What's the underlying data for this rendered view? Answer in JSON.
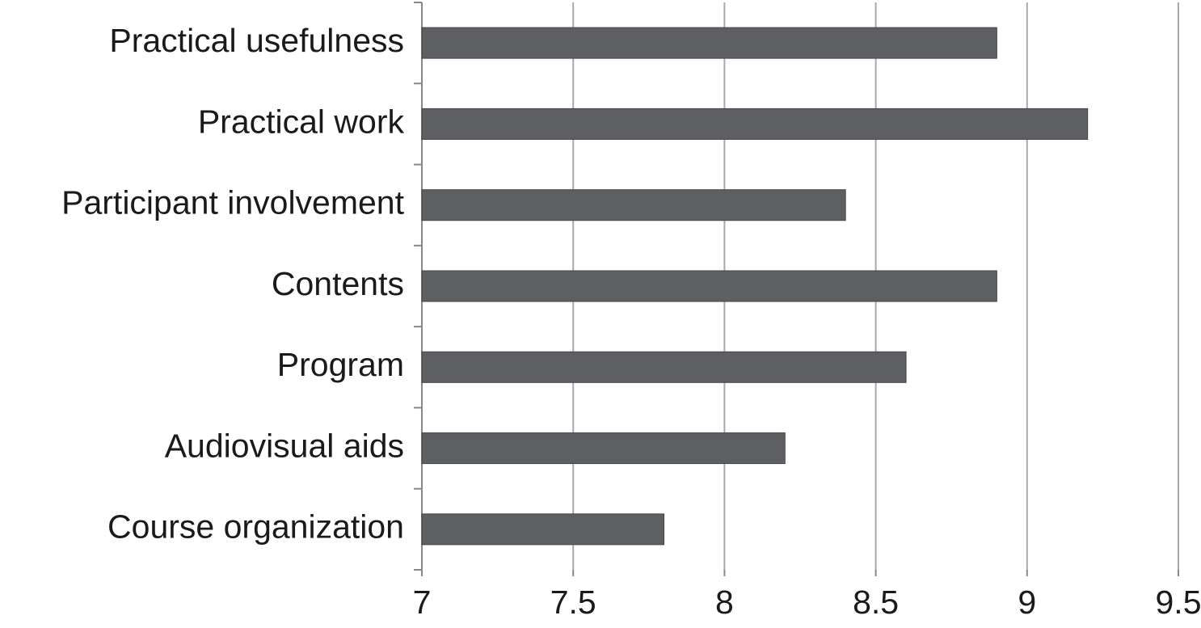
{
  "chart_data": {
    "type": "hbar",
    "categories": [
      "Practical usefulness",
      "Practical work",
      "Participant involvement",
      "Contents",
      "Program",
      "Audiovisual aids",
      "Course organization"
    ],
    "values": [
      8.9,
      9.2,
      8.4,
      8.9,
      8.6,
      8.2,
      7.8
    ],
    "color": "#5e5f63",
    "xlim": [
      7,
      9.5
    ],
    "xticks": [
      7,
      7.5,
      8,
      8.5,
      9,
      9.5
    ],
    "grid": true
  }
}
